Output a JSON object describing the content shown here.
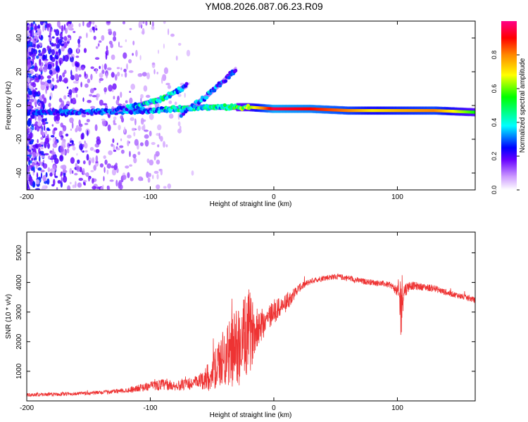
{
  "title": "YM08.2026.087.06.23.R09",
  "chart_data": [
    {
      "type": "heatmap",
      "id": "spectrogram",
      "xlabel": "Height of straight line (km)",
      "ylabel": "Frequency (Hz)",
      "xlim": [
        -200,
        163
      ],
      "ylim": [
        -50,
        50
      ],
      "xticks": [
        -200,
        -100,
        0,
        100
      ],
      "yticks": [
        -40,
        -20,
        0,
        20,
        40
      ],
      "colorbar": {
        "label": "Normalized spectral amplitude",
        "range": [
          0,
          1
        ],
        "ticks": [
          "0.0",
          "0.2",
          "0.4",
          "0.6",
          "0.8"
        ]
      },
      "features": [
        {
          "name": "carrier",
          "x": [
            -200,
            -150,
            -100,
            -80,
            -60,
            -40,
            -20,
            0,
            30,
            60,
            80,
            100,
            130,
            163
          ],
          "y": [
            -4,
            -4,
            -3,
            -2,
            -1,
            -1,
            -1,
            -2,
            -2,
            -3,
            -3,
            -3,
            -3,
            -4
          ],
          "amplitude": [
            0.25,
            0.3,
            0.35,
            0.45,
            0.4,
            0.45,
            0.6,
            0.95,
            0.9,
            0.8,
            0.7,
            0.75,
            0.8,
            0.55
          ]
        },
        {
          "name": "upper-branch",
          "x": [
            -130,
            -110,
            -90,
            -80,
            -70
          ],
          "y": [
            -3,
            0,
            4,
            8,
            12
          ],
          "amplitude": [
            0.3,
            0.4,
            0.45,
            0.4,
            0.3
          ]
        },
        {
          "name": "diagonal-streak",
          "x": [
            -75,
            -55,
            -40,
            -30
          ],
          "y": [
            -5,
            5,
            15,
            22
          ],
          "amplitude": [
            0.3,
            0.35,
            0.3,
            0.25
          ]
        }
      ]
    },
    {
      "type": "line",
      "id": "snr",
      "xlabel": "Height of straight line (km)",
      "ylabel": "SNR (10 * v/v)",
      "xlim": [
        -200,
        163
      ],
      "ylim": [
        0,
        5700
      ],
      "xticks": [
        -200,
        -100,
        0,
        100
      ],
      "yticks": [
        1000,
        2000,
        3000,
        4000,
        5000
      ],
      "color": "#ee3333",
      "x": [
        -200,
        -180,
        -160,
        -140,
        -120,
        -100,
        -90,
        -80,
        -70,
        -60,
        -50,
        -40,
        -30,
        -25,
        -20,
        -15,
        -10,
        -5,
        0,
        10,
        20,
        30,
        40,
        50,
        60,
        70,
        80,
        90,
        95,
        100,
        103,
        105,
        110,
        120,
        130,
        140,
        150,
        163
      ],
      "y": [
        200,
        220,
        240,
        280,
        350,
        500,
        550,
        500,
        550,
        650,
        900,
        1500,
        1800,
        2000,
        2300,
        2400,
        2600,
        2800,
        3000,
        3300,
        3800,
        4050,
        4150,
        4200,
        4150,
        4050,
        4000,
        3950,
        3900,
        3700,
        3200,
        3700,
        3900,
        3850,
        3800,
        3650,
        3550,
        3400
      ],
      "noise": [
        60,
        60,
        60,
        70,
        80,
        150,
        200,
        150,
        200,
        250,
        600,
        1000,
        1400,
        1400,
        1500,
        700,
        600,
        500,
        400,
        300,
        150,
        100,
        100,
        100,
        100,
        100,
        100,
        100,
        100,
        200,
        1500,
        300,
        150,
        120,
        120,
        100,
        100,
        100
      ]
    }
  ]
}
